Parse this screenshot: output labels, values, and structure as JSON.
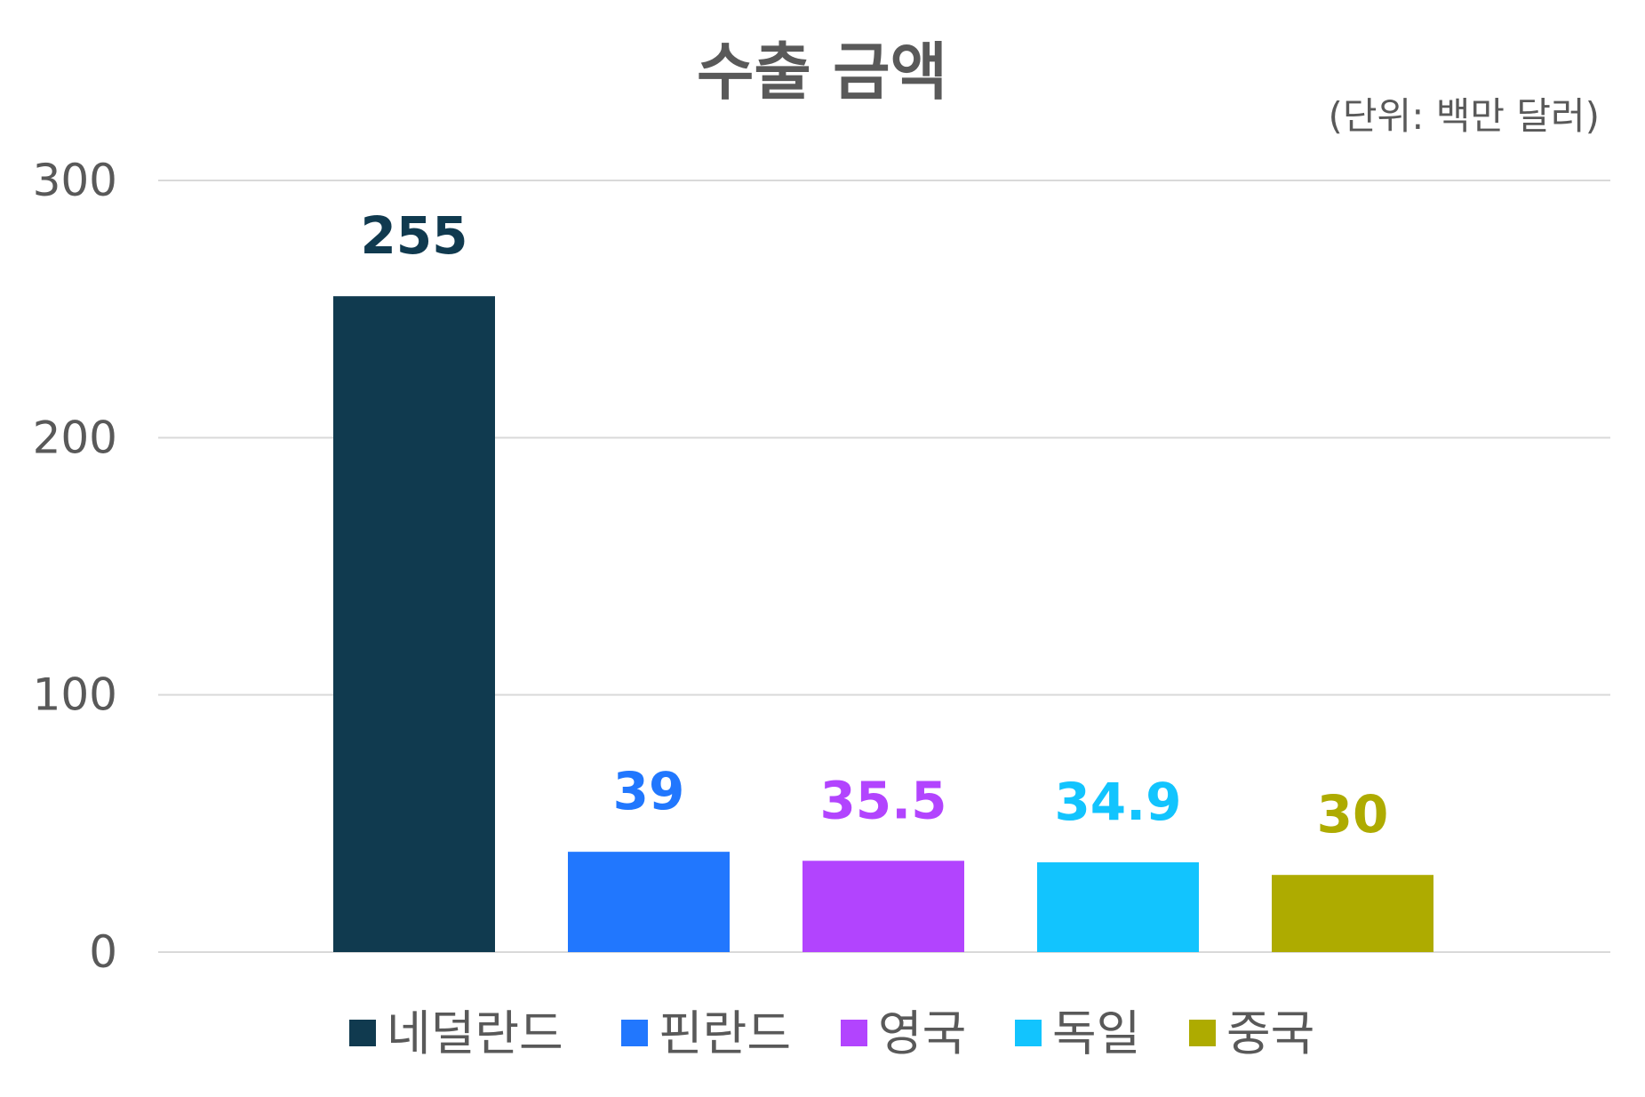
{
  "chart_data": {
    "type": "bar",
    "title": "수출 금액",
    "unit_note": "(단위: 백만 달러)",
    "categories": [
      "네덜란드",
      "핀란드",
      "영국",
      "독일",
      "중국"
    ],
    "values": [
      255,
      39,
      35.5,
      34.9,
      30
    ],
    "data_labels": [
      "255",
      "39",
      "35.5",
      "34.9",
      "30"
    ],
    "colors": [
      "#103a4f",
      "#2177fe",
      "#b244fe",
      "#12c4fe",
      "#aeab00"
    ],
    "ylim": [
      0,
      300
    ],
    "yticks": [
      0,
      100,
      200,
      300
    ],
    "ytick_labels": [
      "0",
      "100",
      "200",
      "300"
    ],
    "grid": true,
    "legend_position": "bottom"
  }
}
